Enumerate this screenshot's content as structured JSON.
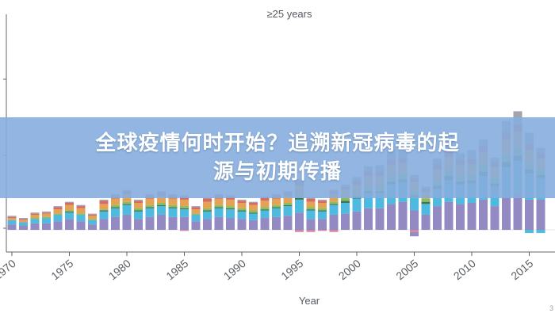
{
  "banner": {
    "line1": "全球疫情何时开始？追溯新冠病毒的起",
    "line2": "源与初期传播"
  },
  "page_number": "3",
  "colors": {
    "grey": "#9a9ba8",
    "purple": "#8a7fbe",
    "cyan": "#3fb4dd",
    "dark_green": "#2c6a4a",
    "green": "#7eb84f",
    "orange": "#e39a45",
    "red": "#d06058",
    "pink": "#d27a93",
    "axis": "#606468"
  },
  "chart_data": {
    "type": "bar",
    "stacked": true,
    "title": "≥25 years",
    "xlabel": "Year",
    "ylabel": "",
    "x_ticks": [
      "1970",
      "1975",
      "1980",
      "1985",
      "1990",
      "1995",
      "2000",
      "2005",
      "2010",
      "2015"
    ],
    "categories": [
      "1970",
      "1971",
      "1972",
      "1973",
      "1974",
      "1975",
      "1976",
      "1977",
      "1978",
      "1979",
      "1980",
      "1981",
      "1982",
      "1983",
      "1984",
      "1985",
      "1986",
      "1987",
      "1988",
      "1989",
      "1990",
      "1991",
      "1992",
      "1993",
      "1994",
      "1995",
      "1996",
      "1997",
      "1998",
      "1999",
      "2000",
      "2001",
      "2002",
      "2003",
      "2004",
      "2005",
      "2006",
      "2007",
      "2008",
      "2009",
      "2010",
      "2011",
      "2012",
      "2013",
      "2014",
      "2015",
      "2016"
    ],
    "ylim": [
      -0.15,
      2.0
    ],
    "grid": false,
    "series_colors": [
      "#8a7fbe",
      "#3fb4dd",
      "#2c6a4a",
      "#7eb84f",
      "#e39a45",
      "#d06058",
      "#9a9ba8"
    ],
    "negative_colors": [
      "#d27a93",
      "#3fb4dd",
      "#8a7fbe"
    ],
    "series": [
      {
        "values": [
          0.05,
          0.04,
          0.06,
          0.06,
          0.08,
          0.1,
          0.08,
          0.05,
          0.1,
          0.12,
          0.14,
          0.1,
          0.12,
          0.14,
          0.12,
          0.12,
          0.08,
          0.1,
          0.12,
          0.11,
          0.1,
          0.09,
          0.11,
          0.12,
          0.13,
          0.16,
          0.1,
          0.1,
          0.14,
          0.15,
          0.17,
          0.2,
          0.2,
          0.24,
          0.26,
          0.18,
          0.14,
          0.22,
          0.26,
          0.24,
          0.25,
          0.28,
          0.22,
          0.3,
          0.34,
          0.28,
          0.28
        ]
      },
      {
        "values": [
          0.04,
          0.03,
          0.04,
          0.05,
          0.06,
          0.06,
          0.06,
          0.04,
          0.07,
          0.08,
          0.09,
          0.07,
          0.08,
          0.08,
          0.08,
          0.07,
          0.06,
          0.07,
          0.08,
          0.08,
          0.07,
          0.06,
          0.07,
          0.08,
          0.09,
          0.12,
          0.08,
          0.07,
          0.09,
          0.1,
          0.12,
          0.14,
          0.14,
          0.18,
          0.18,
          0.12,
          0.1,
          0.16,
          0.2,
          0.18,
          0.18,
          0.22,
          0.18,
          0.28,
          0.3,
          0.24,
          0.2
        ]
      },
      {
        "values": [
          0.0,
          0.0,
          0.0,
          0.0,
          0.0,
          0.01,
          0.0,
          0.0,
          0.01,
          0.01,
          0.01,
          0.01,
          0.01,
          0.01,
          0.01,
          0.01,
          0.0,
          0.01,
          0.01,
          0.01,
          0.01,
          0.01,
          0.01,
          0.01,
          0.01,
          0.02,
          0.01,
          0.01,
          0.01,
          0.02,
          0.02,
          0.02,
          0.02,
          0.03,
          0.03,
          0.02,
          0.02,
          0.03,
          0.04,
          0.03,
          0.03,
          0.04,
          0.03,
          0.05,
          0.05,
          0.04,
          0.03
        ]
      },
      {
        "values": [
          0.0,
          0.0,
          0.01,
          0.01,
          0.01,
          0.01,
          0.01,
          0.01,
          0.01,
          0.02,
          0.02,
          0.02,
          0.02,
          0.02,
          0.02,
          0.02,
          0.01,
          0.02,
          0.02,
          0.02,
          0.02,
          0.02,
          0.02,
          0.02,
          0.02,
          0.03,
          0.02,
          0.02,
          0.02,
          0.03,
          0.03,
          0.04,
          0.04,
          0.05,
          0.05,
          0.04,
          0.03,
          0.05,
          0.06,
          0.05,
          0.05,
          0.06,
          0.05,
          0.07,
          0.08,
          0.06,
          0.05
        ]
      },
      {
        "values": [
          0.02,
          0.02,
          0.03,
          0.03,
          0.04,
          0.05,
          0.05,
          0.03,
          0.05,
          0.06,
          0.07,
          0.05,
          0.06,
          0.07,
          0.06,
          0.06,
          0.04,
          0.06,
          0.06,
          0.06,
          0.05,
          0.05,
          0.06,
          0.06,
          0.07,
          0.08,
          0.05,
          0.05,
          0.07,
          0.07,
          0.08,
          0.1,
          0.1,
          0.1,
          0.1,
          0.08,
          0.06,
          0.1,
          0.12,
          0.1,
          0.1,
          0.12,
          0.1,
          0.14,
          0.14,
          0.12,
          0.1
        ]
      },
      {
        "values": [
          0.01,
          0.01,
          0.01,
          0.01,
          0.02,
          0.02,
          0.02,
          0.01,
          0.03,
          0.03,
          0.03,
          0.02,
          0.03,
          0.03,
          0.03,
          0.03,
          0.02,
          0.03,
          0.03,
          0.03,
          0.02,
          0.02,
          0.03,
          0.03,
          0.03,
          0.04,
          0.03,
          0.02,
          0.03,
          0.03,
          0.04,
          0.05,
          0.05,
          0.05,
          0.05,
          0.04,
          0.03,
          0.05,
          0.06,
          0.05,
          0.05,
          0.06,
          0.05,
          0.07,
          0.07,
          0.06,
          0.05
        ]
      },
      {
        "values": [
          0.01,
          0.01,
          0.01,
          0.01,
          0.01,
          0.01,
          0.01,
          0.01,
          0.01,
          0.01,
          0.01,
          0.01,
          0.01,
          0.01,
          0.01,
          0.01,
          0.01,
          0.01,
          0.01,
          0.01,
          0.01,
          0.01,
          0.01,
          0.01,
          0.01,
          0.02,
          0.01,
          0.01,
          0.01,
          0.02,
          0.03,
          0.04,
          0.05,
          0.1,
          0.06,
          0.03,
          0.02,
          0.05,
          0.14,
          0.06,
          0.08,
          0.06,
          0.04,
          0.1,
          0.12,
          0.1,
          0.05
        ]
      }
    ],
    "negative_series": [
      {
        "values": [
          0,
          0,
          0,
          0,
          0,
          0,
          0,
          0,
          0,
          0,
          0,
          0,
          0,
          0,
          0,
          0.01,
          0,
          0,
          0,
          0,
          0,
          0,
          0,
          0,
          0,
          0.02,
          0.02,
          0.01,
          0.02,
          0,
          0,
          0,
          0,
          0,
          0,
          0.02,
          0,
          0,
          0,
          0,
          0,
          0,
          0,
          0,
          0,
          0,
          0
        ]
      },
      {
        "values": [
          0,
          0,
          0,
          0,
          0,
          0,
          0,
          0,
          0,
          0,
          0,
          0,
          0,
          0,
          0,
          0,
          0,
          0,
          0,
          0,
          0,
          0,
          0,
          0,
          0,
          0,
          0,
          0,
          0,
          0,
          0,
          0,
          0,
          0,
          0,
          0,
          0,
          0,
          0,
          0,
          0,
          0,
          0,
          0,
          0,
          0.03,
          0.03
        ]
      },
      {
        "values": [
          0,
          0,
          0,
          0,
          0,
          0,
          0,
          0,
          0,
          0,
          0,
          0,
          0,
          0,
          0,
          0,
          0,
          0,
          0,
          0,
          0,
          0,
          0,
          0,
          0,
          0,
          0,
          0,
          0,
          0,
          0,
          0,
          0,
          0,
          0,
          0.04,
          0,
          0,
          0,
          0,
          0,
          0,
          0,
          0,
          0,
          0,
          0
        ]
      }
    ]
  }
}
